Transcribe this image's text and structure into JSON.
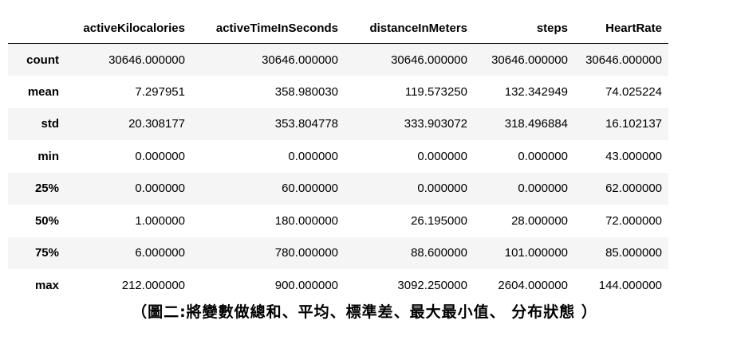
{
  "table": {
    "columns": [
      "activeKilocalories",
      "activeTimeInSeconds",
      "distanceInMeters",
      "steps",
      "HeartRate"
    ],
    "rows": [
      {
        "label": "count",
        "values": [
          "30646.000000",
          "30646.000000",
          "30646.000000",
          "30646.000000",
          "30646.000000"
        ]
      },
      {
        "label": "mean",
        "values": [
          "7.297951",
          "358.980030",
          "119.573250",
          "132.342949",
          "74.025224"
        ]
      },
      {
        "label": "std",
        "values": [
          "20.308177",
          "353.804778",
          "333.903072",
          "318.496884",
          "16.102137"
        ]
      },
      {
        "label": "min",
        "values": [
          "0.000000",
          "0.000000",
          "0.000000",
          "0.000000",
          "43.000000"
        ]
      },
      {
        "label": "25%",
        "values": [
          "0.000000",
          "60.000000",
          "0.000000",
          "0.000000",
          "62.000000"
        ]
      },
      {
        "label": "50%",
        "values": [
          "1.000000",
          "180.000000",
          "26.195000",
          "28.000000",
          "72.000000"
        ]
      },
      {
        "label": "75%",
        "values": [
          "6.000000",
          "780.000000",
          "88.600000",
          "101.000000",
          "85.000000"
        ]
      },
      {
        "label": "max",
        "values": [
          "212.000000",
          "900.000000",
          "3092.250000",
          "2604.000000",
          "144.000000"
        ]
      }
    ]
  },
  "caption": "（圖二:將變數做總和、平均、標準差、最大最小值、 分布狀態 ）"
}
